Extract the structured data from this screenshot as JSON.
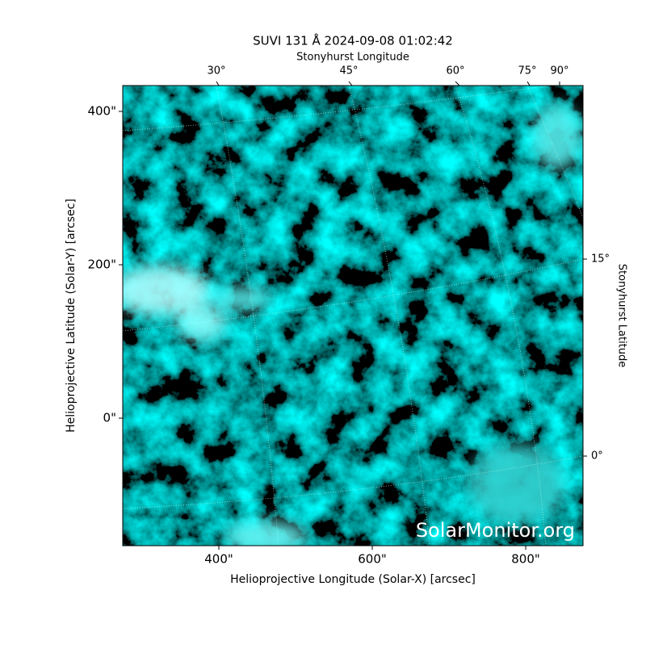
{
  "chart_data": {
    "type": "image",
    "title": "SUVI 131 Å 2024-09-08 01:02:42",
    "xlabel": "Helioprojective Longitude (Solar-X) [arcsec]",
    "ylabel": "Helioprojective Latitude (Solar-Y) [arcsec]",
    "x2label": "Stonyhurst Longitude",
    "y2label": "Stonyhurst Latitude",
    "xlim": [
      274.7,
      874.7
    ],
    "ylim": [
      -166.3,
      433.7
    ],
    "xticks": [
      {
        "value": 400,
        "label": "400\""
      },
      {
        "value": 600,
        "label": "600\""
      },
      {
        "value": 800,
        "label": "800\""
      }
    ],
    "yticks": [
      {
        "value": 0,
        "label": "0\""
      },
      {
        "value": 200,
        "label": "200\""
      },
      {
        "value": 400,
        "label": "400\""
      }
    ],
    "x2ticks": [
      {
        "value": 30,
        "label": "30°"
      },
      {
        "value": 45,
        "label": "45°"
      },
      {
        "value": 60,
        "label": "60°"
      },
      {
        "value": 75,
        "label": "75°"
      },
      {
        "value": 90,
        "label": "90°"
      }
    ],
    "y2ticks": [
      {
        "value": 0,
        "label": "0°"
      },
      {
        "value": 15,
        "label": "15°"
      }
    ],
    "watermark": "SolarMonitor.org"
  }
}
